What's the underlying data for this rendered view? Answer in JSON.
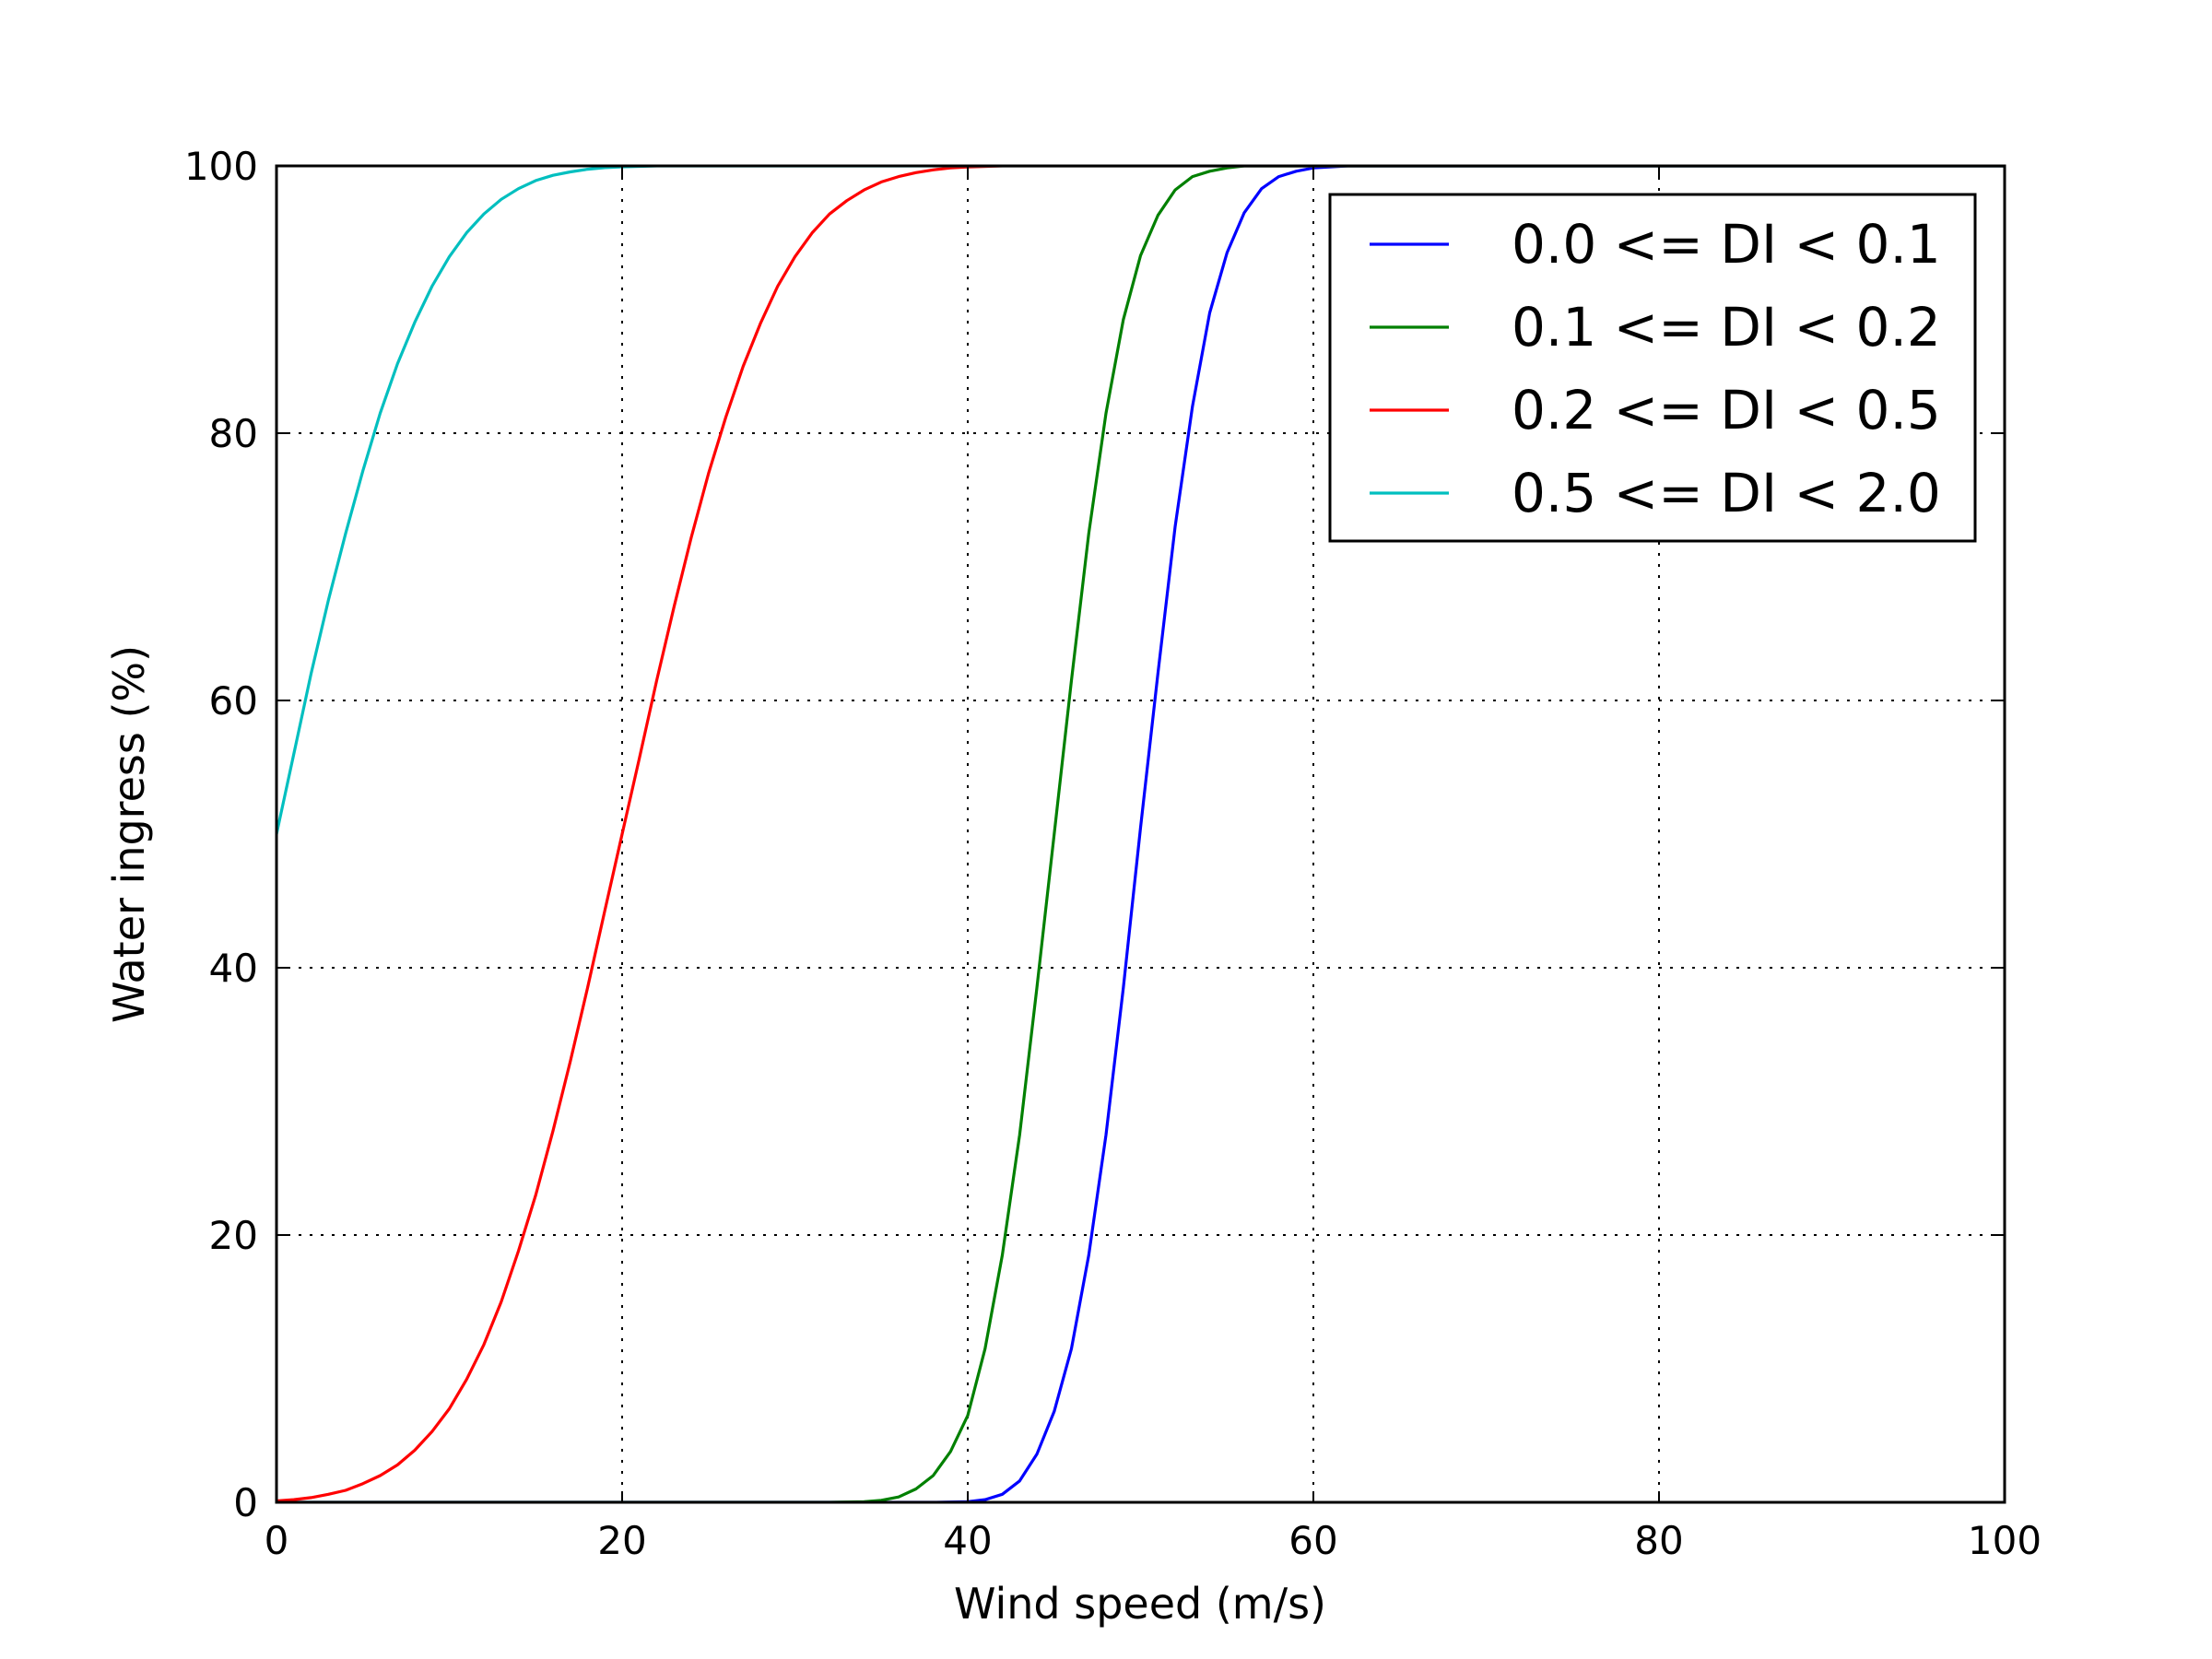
{
  "chart_data": {
    "type": "line",
    "xlabel": "Wind speed (m/s)",
    "ylabel": "Water ingress (%)",
    "xlim": [
      0,
      100
    ],
    "ylim": [
      0,
      100
    ],
    "xticks": [
      0,
      20,
      40,
      60,
      80,
      100
    ],
    "yticks": [
      0,
      20,
      40,
      60,
      80,
      100
    ],
    "xtick_labels": [
      "0",
      "20",
      "40",
      "60",
      "80",
      "100"
    ],
    "ytick_labels": [
      "0",
      "20",
      "40",
      "60",
      "80",
      "100"
    ],
    "grid": true,
    "legend_position": "top-right",
    "series": [
      {
        "name": "0.0 <= DI < 0.1",
        "color": "#0000ff",
        "x": [
          0,
          38,
          40,
          41,
          42,
          43,
          44,
          45,
          46,
          47,
          48,
          49,
          50,
          51,
          52,
          53,
          54,
          55,
          56,
          57,
          58,
          59,
          60,
          62,
          64,
          100
        ],
        "y": [
          0,
          0,
          0.05,
          0.2,
          0.6,
          1.6,
          3.6,
          6.8,
          11.5,
          18.5,
          27.5,
          38.5,
          50.5,
          62,
          73,
          82,
          89,
          93.5,
          96.5,
          98.3,
          99.2,
          99.6,
          99.85,
          100,
          100,
          100
        ]
      },
      {
        "name": "0.1 <= DI < 0.2",
        "color": "#008000",
        "x": [
          0,
          32,
          34,
          35,
          36,
          37,
          38,
          39,
          40,
          41,
          42,
          43,
          44,
          45,
          46,
          47,
          48,
          49,
          50,
          51,
          52,
          53,
          54,
          55,
          56,
          57,
          58,
          60,
          100
        ],
        "y": [
          0,
          0,
          0.05,
          0.15,
          0.4,
          1.0,
          2.0,
          3.8,
          6.5,
          11.5,
          18.5,
          27.5,
          38.5,
          50,
          61.5,
          72.5,
          81.5,
          88.5,
          93.3,
          96.3,
          98.2,
          99.2,
          99.6,
          99.85,
          100,
          100,
          100,
          100,
          100
        ]
      },
      {
        "name": "0.2 <= DI < 0.5",
        "color": "#ff0000",
        "x": [
          0,
          1,
          2,
          3,
          4,
          5,
          6,
          7,
          8,
          9,
          10,
          11,
          12,
          13,
          14,
          15,
          16,
          17,
          18,
          19,
          20,
          21,
          22,
          23,
          24,
          25,
          26,
          27,
          28,
          29,
          30,
          31,
          32,
          33,
          34,
          35,
          36,
          37,
          38,
          39,
          40,
          42,
          44,
          100
        ],
        "y": [
          0.1,
          0.2,
          0.35,
          0.6,
          0.9,
          1.4,
          2.0,
          2.8,
          3.9,
          5.3,
          7.0,
          9.2,
          11.8,
          15.0,
          18.8,
          23.0,
          27.8,
          33.0,
          38.5,
          44.3,
          50,
          55.7,
          61.5,
          67.0,
          72.2,
          77.0,
          81.2,
          85.0,
          88.2,
          91.0,
          93.2,
          95.0,
          96.4,
          97.4,
          98.2,
          98.8,
          99.2,
          99.5,
          99.7,
          99.85,
          99.92,
          100,
          100,
          100
        ]
      },
      {
        "name": "0.5 <= DI < 2.0",
        "color": "#00bfbf",
        "x": [
          0,
          1,
          2,
          3,
          4,
          5,
          6,
          7,
          8,
          9,
          10,
          11,
          12,
          13,
          14,
          15,
          16,
          17,
          18,
          19,
          20,
          22,
          25,
          100
        ],
        "y": [
          50,
          56,
          62,
          67.5,
          72.5,
          77.2,
          81.5,
          85.2,
          88.3,
          91.0,
          93.2,
          95.0,
          96.4,
          97.5,
          98.3,
          98.9,
          99.3,
          99.55,
          99.75,
          99.87,
          99.93,
          100,
          100,
          100
        ]
      }
    ]
  }
}
